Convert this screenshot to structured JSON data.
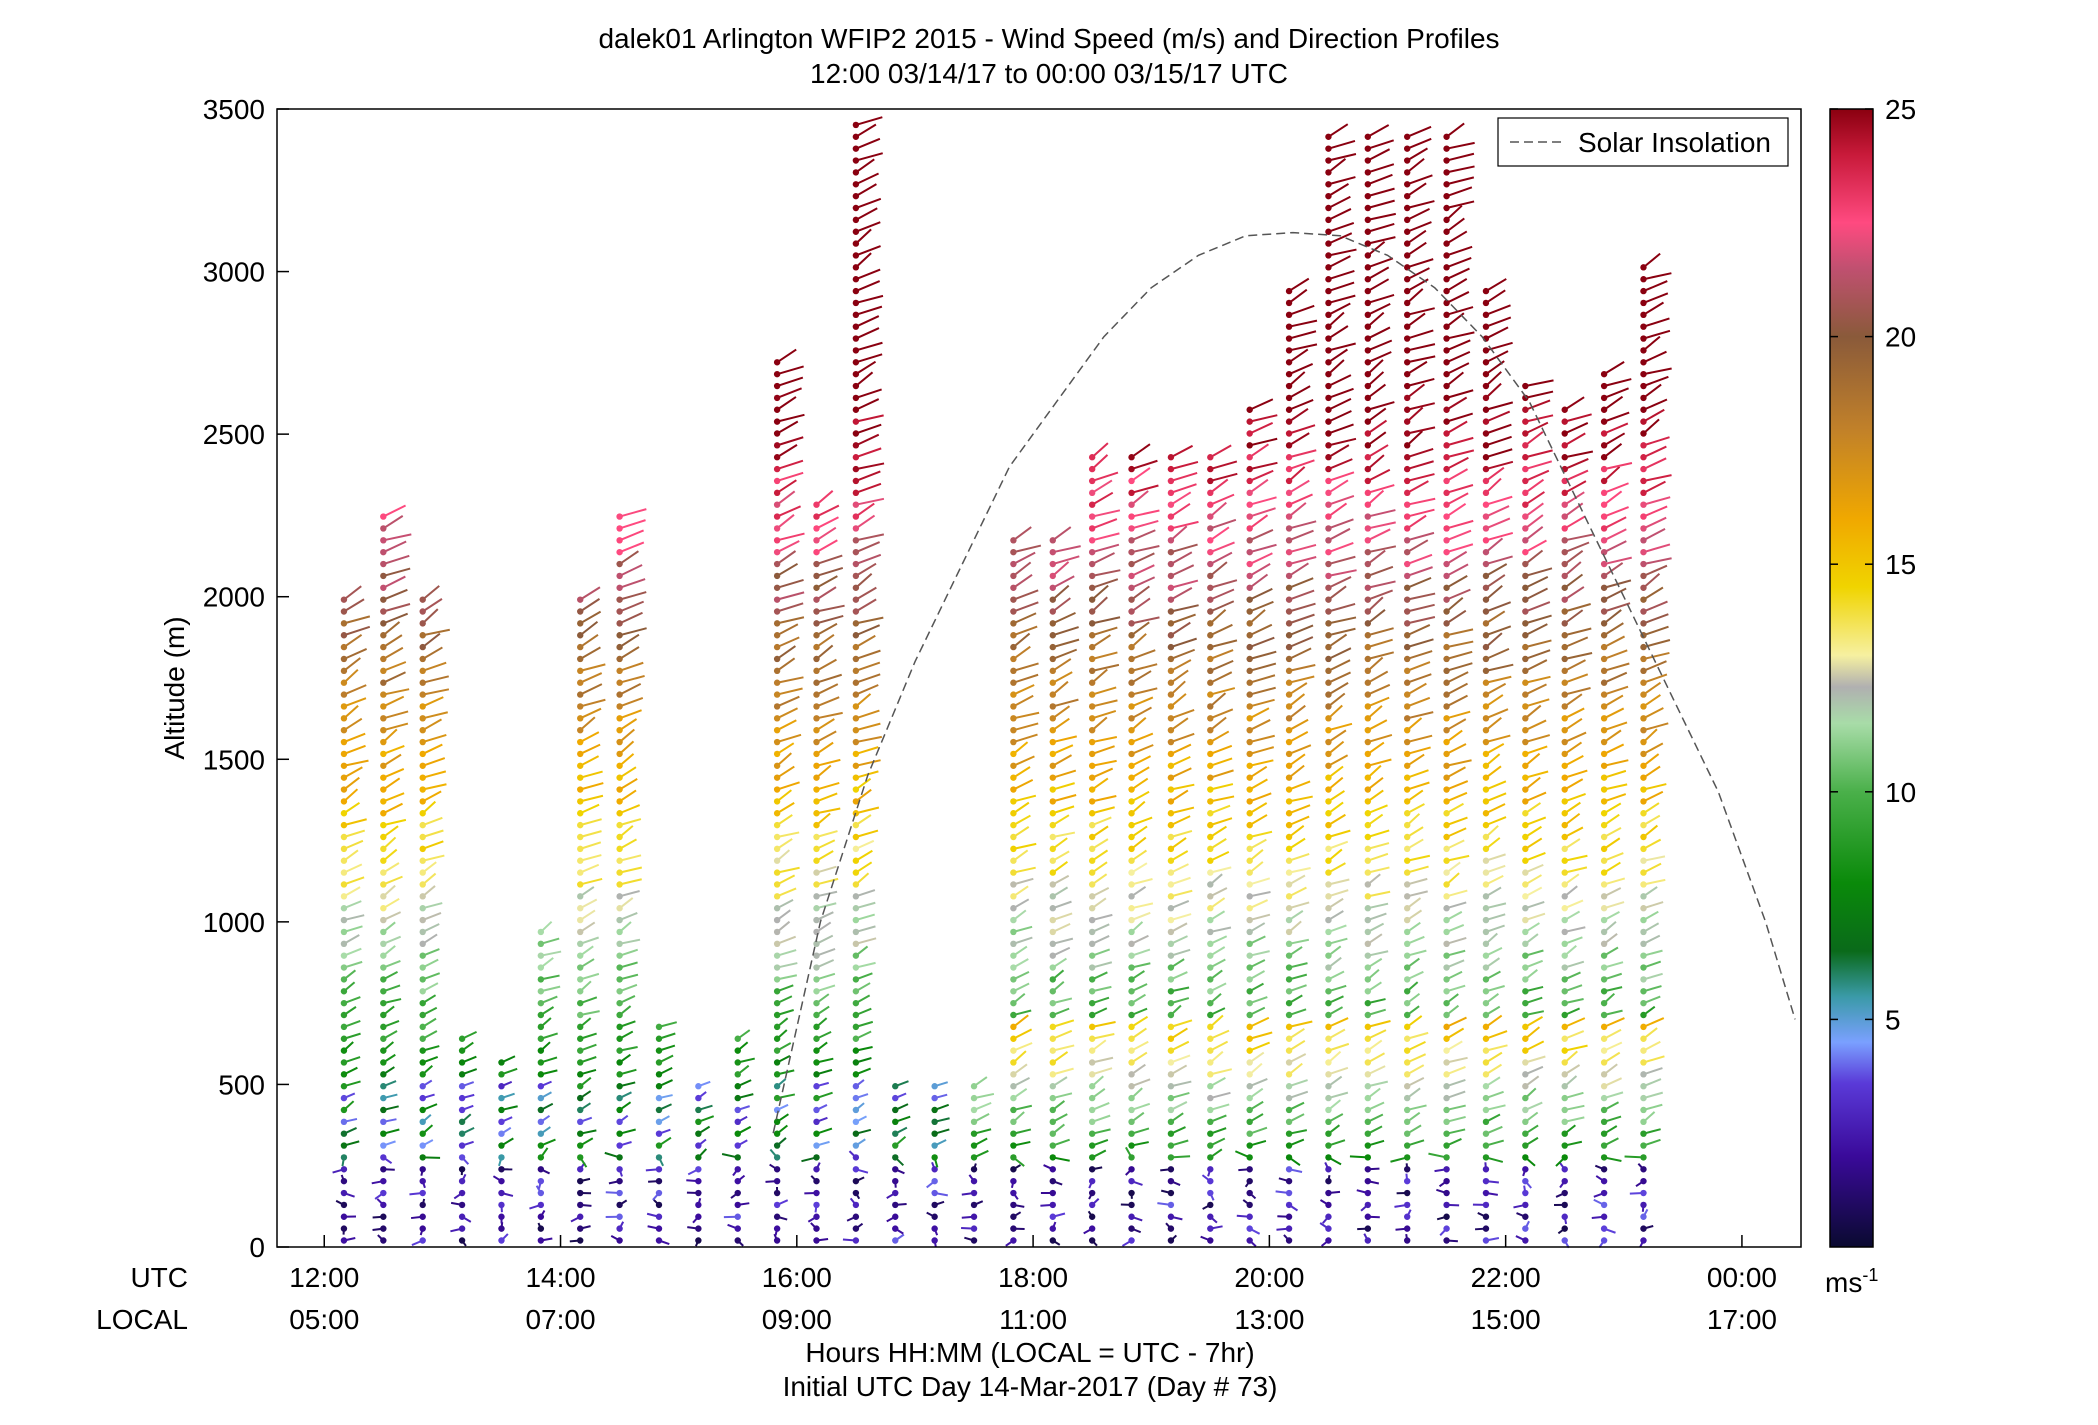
{
  "chart_data": {
    "type": "scatter",
    "title": "dalek01 Arlington WFIP2 2015 - Wind Speed (m/s) and Direction Profiles",
    "subtitle": "12:00 03/14/17 to 00:00 03/15/17  UTC",
    "ylabel": "Altitude (m)",
    "xlabel": "Hours HH:MM  (LOCAL = UTC - 7hr)",
    "xlabel2": "Initial UTC Day 14-Mar-2017 (Day # 73)",
    "x_row_labels": {
      "utc": "UTC",
      "local": "LOCAL"
    },
    "x_range_utc_hours": [
      11.6,
      24.5
    ],
    "ylim": [
      0,
      3500
    ],
    "y_ticks": [
      {
        "v": 0,
        "label": "0"
      },
      {
        "v": 500,
        "label": "500"
      },
      {
        "v": 1000,
        "label": "1000"
      },
      {
        "v": 1500,
        "label": "1500"
      },
      {
        "v": 2000,
        "label": "2000"
      },
      {
        "v": 2500,
        "label": "2500"
      },
      {
        "v": 3000,
        "label": "3000"
      },
      {
        "v": 3500,
        "label": "3500"
      }
    ],
    "x_ticks": [
      {
        "hour": 12,
        "utc": "12:00",
        "local": "05:00"
      },
      {
        "hour": 14,
        "utc": "14:00",
        "local": "07:00"
      },
      {
        "hour": 16,
        "utc": "16:00",
        "local": "09:00"
      },
      {
        "hour": 18,
        "utc": "18:00",
        "local": "11:00"
      },
      {
        "hour": 20,
        "utc": "20:00",
        "local": "13:00"
      },
      {
        "hour": 22,
        "utc": "22:00",
        "local": "15:00"
      },
      {
        "hour": 24,
        "utc": "00:00",
        "local": "17:00"
      }
    ],
    "legend": {
      "position": "top-right",
      "entries": [
        {
          "label": "Solar Insolation",
          "style": "dashed",
          "color": "#555555"
        }
      ]
    },
    "colorbar": {
      "min": 0,
      "max": 25,
      "unit": "ms-1",
      "ticks": [
        {
          "v": 5,
          "label": "5"
        },
        {
          "v": 10,
          "label": "10"
        },
        {
          "v": 15,
          "label": "15"
        },
        {
          "v": 20,
          "label": "20"
        },
        {
          "v": 25,
          "label": "25"
        }
      ],
      "stops": [
        {
          "v": 0,
          "color": "#0a0a30"
        },
        {
          "v": 2,
          "color": "#3a0a9a"
        },
        {
          "v": 3.6,
          "color": "#5a3ad8"
        },
        {
          "v": 4.5,
          "color": "#7aa0ff"
        },
        {
          "v": 5.5,
          "color": "#3a9aa8"
        },
        {
          "v": 6.5,
          "color": "#0a6a1a"
        },
        {
          "v": 8,
          "color": "#0a8a0a"
        },
        {
          "v": 10,
          "color": "#4ab04a"
        },
        {
          "v": 11.5,
          "color": "#a8dca8"
        },
        {
          "v": 12.3,
          "color": "#b0b0b0"
        },
        {
          "v": 13,
          "color": "#f6f0a0"
        },
        {
          "v": 14.5,
          "color": "#f0d400"
        },
        {
          "v": 16,
          "color": "#f0a800"
        },
        {
          "v": 18,
          "color": "#c0802a"
        },
        {
          "v": 20,
          "color": "#8a5a3a"
        },
        {
          "v": 21.5,
          "color": "#c05070"
        },
        {
          "v": 22.5,
          "color": "#ff4a80"
        },
        {
          "v": 24,
          "color": "#c81a3a"
        },
        {
          "v": 25,
          "color": "#8a0010"
        }
      ]
    },
    "solar_insolation_curve": {
      "hours": [
        15.8,
        16.2,
        16.6,
        17.0,
        17.4,
        17.8,
        18.2,
        18.6,
        19.0,
        19.4,
        19.8,
        20.2,
        20.6,
        21.0,
        21.4,
        21.8,
        22.2,
        22.6,
        23.0,
        23.4,
        23.8,
        24.2,
        24.45
      ],
      "values": [
        350,
        1000,
        1450,
        1800,
        2100,
        2400,
        2600,
        2800,
        2950,
        3050,
        3110,
        3120,
        3110,
        3050,
        2950,
        2800,
        2600,
        2300,
        2000,
        1700,
        1400,
        1000,
        700
      ]
    },
    "wind_profiles": {
      "heights_m": [
        0,
        3500
      ],
      "ranges_m": [
        [
          20,
          2000
        ],
        [
          20,
          2260
        ],
        [
          20,
          2000
        ],
        [
          20,
          650
        ],
        [
          20,
          580
        ],
        [
          20,
          1000
        ],
        [
          20,
          2000
        ],
        [
          20,
          2260
        ],
        [
          20,
          700
        ],
        [
          20,
          520
        ],
        [
          20,
          650
        ],
        [
          20,
          2750
        ],
        [
          20,
          2300
        ],
        [
          20,
          3460
        ],
        [
          20,
          520
        ],
        [
          20,
          520
        ],
        [
          20,
          520
        ],
        [
          20,
          2200
        ],
        [
          20,
          2200
        ],
        [
          20,
          2450
        ],
        [
          20,
          2450
        ],
        [
          20,
          2450
        ],
        [
          20,
          2450
        ],
        [
          20,
          2600
        ],
        [
          20,
          2950
        ],
        [
          20,
          3450
        ],
        [
          20,
          3450
        ],
        [
          20,
          3450
        ],
        [
          20,
          3450
        ],
        [
          20,
          2950
        ],
        [
          20,
          2650
        ],
        [
          20,
          2600
        ],
        [
          20,
          2700
        ],
        [
          20,
          3040
        ]
      ]
    }
  }
}
